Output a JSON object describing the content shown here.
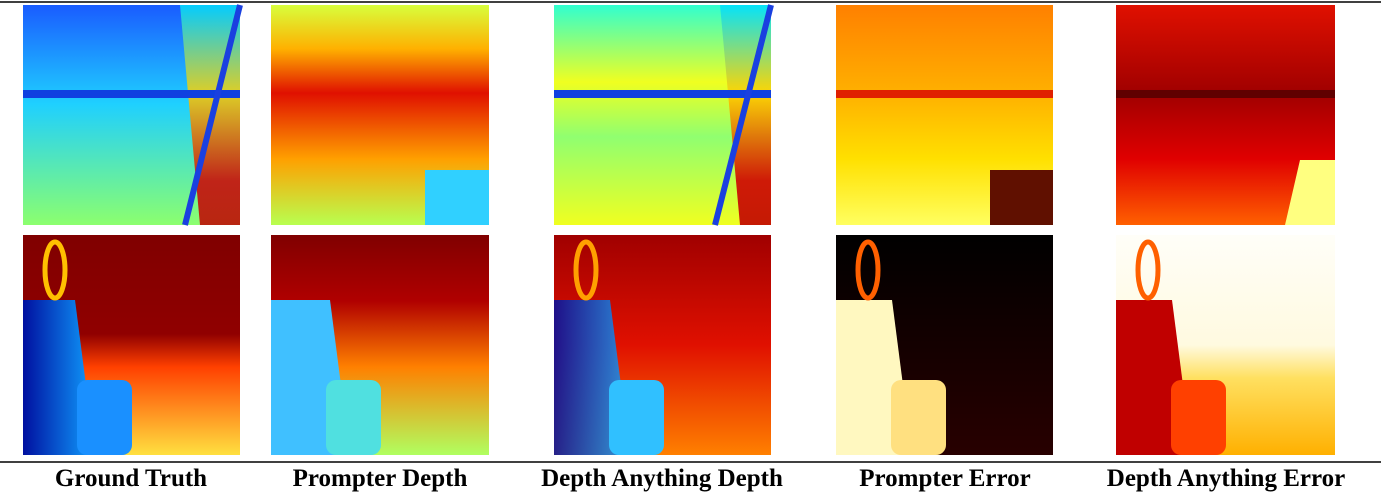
{
  "columns": [
    {
      "label": "Ground Truth"
    },
    {
      "label": "Prompter Depth"
    },
    {
      "label": "Depth Anything Depth"
    },
    {
      "label": "Prompter Error"
    },
    {
      "label": "Depth Anything Error"
    }
  ]
}
